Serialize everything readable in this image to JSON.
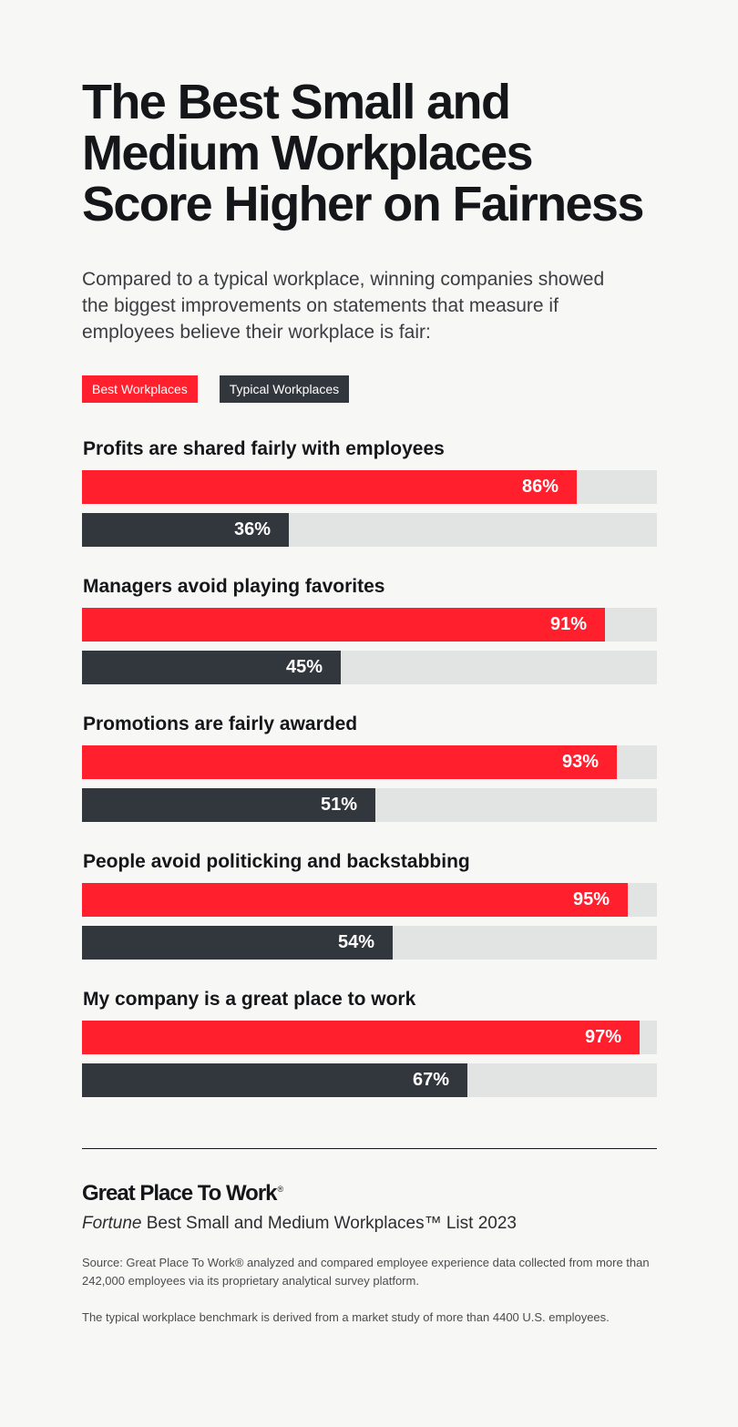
{
  "header": {
    "title": "The Best Small and Medium Workplaces Score Higher on Fairness",
    "subtitle": "Compared to a typical workplace, winning companies showed the biggest improvements on statements that measure if employees believe their workplace is fair:"
  },
  "legend": {
    "items": [
      {
        "label": "Best Workplaces",
        "color": "#ff1f2d"
      },
      {
        "label": "Typical Workplaces",
        "color": "#32363d"
      }
    ]
  },
  "chart_data": {
    "type": "bar",
    "orientation": "horizontal",
    "xlim": [
      0,
      100
    ],
    "categories": [
      "Profits are shared fairly with employees",
      "Managers avoid playing favorites",
      "Promotions are fairly awarded",
      "People avoid politicking and backstabbing",
      "My company is a great place to work"
    ],
    "series": [
      {
        "name": "Best Workplaces",
        "color": "#ff1f2d",
        "values": [
          86,
          91,
          93,
          95,
          97
        ]
      },
      {
        "name": "Typical Workplaces",
        "color": "#32363d",
        "values": [
          36,
          45,
          51,
          54,
          67
        ]
      }
    ],
    "value_labels": {
      "Best Workplaces": [
        "86%",
        "91%",
        "93%",
        "95%",
        "97%"
      ],
      "Typical Workplaces": [
        "36%",
        "45%",
        "51%",
        "54%",
        "67%"
      ]
    },
    "track_color": "#e1e4e3",
    "legend_position": "top-left"
  },
  "footer": {
    "brand": "Great Place To Work",
    "brand_mark": "®",
    "list_name_italic": "Fortune",
    "list_name_rest": " Best Small and Medium Workplaces™ List 2023",
    "source_note": "Source: Great Place To Work® analyzed and compared employee experience data collected from more than 242,000 employees via its proprietary analytical survey platform.",
    "benchmark_note": "The typical workplace benchmark is derived from a market study of more than 4400 U.S. employees."
  }
}
